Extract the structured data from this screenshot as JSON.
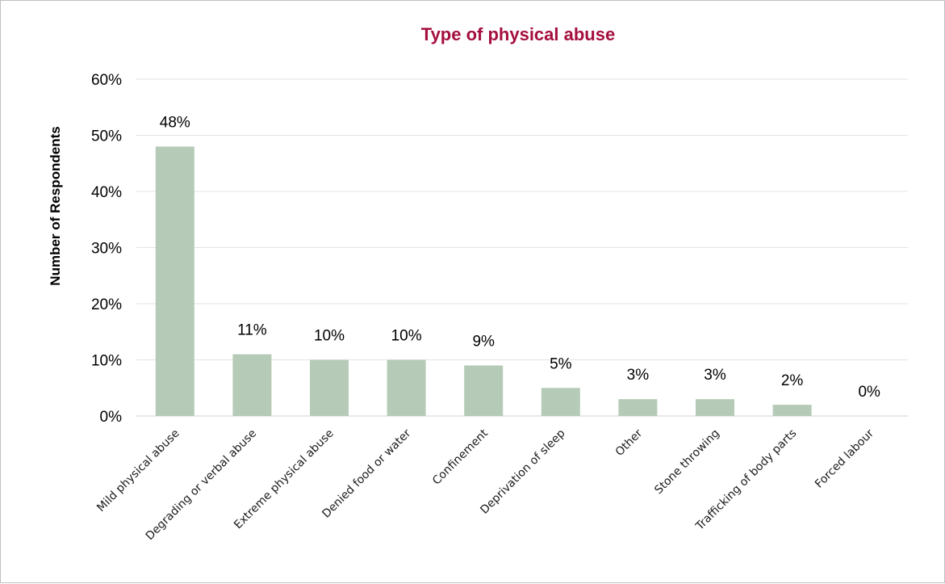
{
  "chart_data": {
    "type": "bar",
    "title": "Type of physical abuse",
    "xlabel": "",
    "ylabel": "Number of Respondents",
    "ylim": [
      0,
      60
    ],
    "y_ticks": [
      "0%",
      "10%",
      "20%",
      "30%",
      "40%",
      "50%",
      "60%"
    ],
    "categories": [
      "Mild physical abuse",
      "Degrading or verbal abuse",
      "Extreme physical abuse",
      "Denied food or water",
      "Confinement",
      "Deprivation of sleep",
      "Other",
      "Stone throwing",
      "Trafficking of body parts",
      "Forced labour"
    ],
    "values": [
      48,
      11,
      10,
      10,
      9,
      5,
      3,
      3,
      2,
      0
    ],
    "data_labels": [
      "48%",
      "11%",
      "10%",
      "10%",
      "9%",
      "5%",
      "3%",
      "3%",
      "2%",
      "0%"
    ],
    "grid": true,
    "legend": "none"
  },
  "colors": {
    "bar": "#b5cbb7",
    "title": "#a50f3d",
    "grid": "#e3e3e3",
    "axis": "#d0d0d0"
  }
}
